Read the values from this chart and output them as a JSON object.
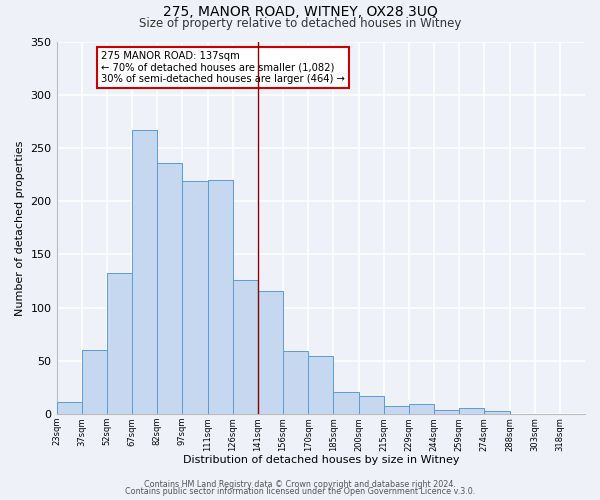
{
  "title": "275, MANOR ROAD, WITNEY, OX28 3UQ",
  "subtitle": "Size of property relative to detached houses in Witney",
  "xlabel": "Distribution of detached houses by size in Witney",
  "ylabel": "Number of detached properties",
  "bin_labels": [
    "23sqm",
    "37sqm",
    "52sqm",
    "67sqm",
    "82sqm",
    "97sqm",
    "111sqm",
    "126sqm",
    "141sqm",
    "156sqm",
    "170sqm",
    "185sqm",
    "200sqm",
    "215sqm",
    "229sqm",
    "244sqm",
    "259sqm",
    "274sqm",
    "288sqm",
    "303sqm",
    "318sqm"
  ],
  "bar_heights": [
    11,
    60,
    133,
    267,
    236,
    219,
    220,
    126,
    116,
    59,
    55,
    21,
    17,
    8,
    10,
    4,
    6,
    3,
    0,
    0,
    0
  ],
  "bar_color": "#c5d8f0",
  "bar_edge_color": "#5b9bd5",
  "vline_index": 8,
  "property_line_label": "275 MANOR ROAD: 137sqm",
  "annotation_line1": "← 70% of detached houses are smaller (1,082)",
  "annotation_line2": "30% of semi-detached houses are larger (464) →",
  "annotation_box_color": "#ffffff",
  "annotation_box_edge_color": "#cc0000",
  "vline_color": "#880000",
  "ylim": [
    0,
    350
  ],
  "yticks": [
    0,
    50,
    100,
    150,
    200,
    250,
    300,
    350
  ],
  "footer1": "Contains HM Land Registry data © Crown copyright and database right 2024.",
  "footer2": "Contains public sector information licensed under the Open Government Licence v.3.0.",
  "background_color": "#eef2f8",
  "grid_color": "#ffffff"
}
